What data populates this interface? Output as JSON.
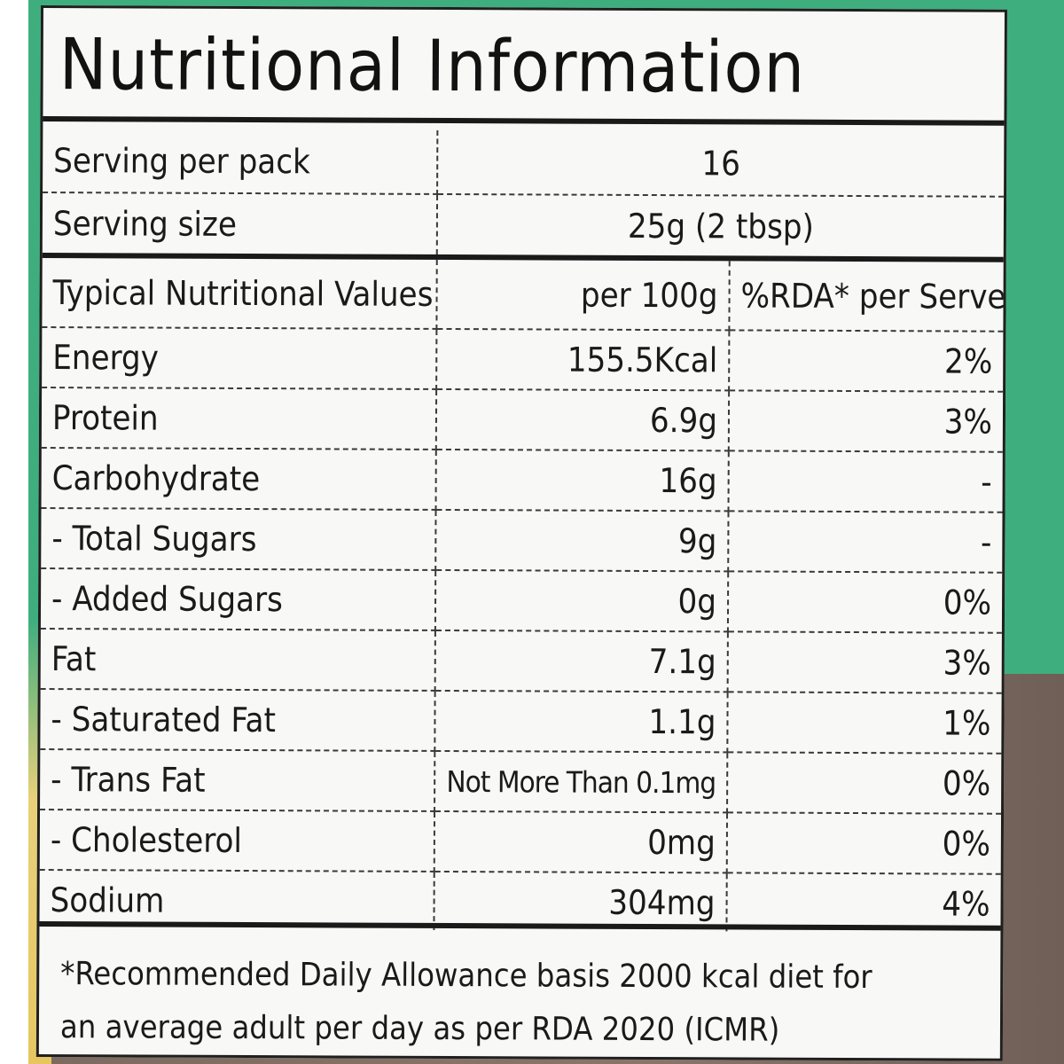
{
  "title": "Nutritional Information",
  "top_text": "",
  "serving": {
    "rows": [
      {
        "label": "Serving per pack",
        "value": "16"
      },
      {
        "label": "Serving size",
        "value": "25g (2 tbsp)"
      }
    ]
  },
  "nutrition": {
    "header": {
      "label": "Typical Nutritional Values",
      "per100": "per 100g",
      "rda": "%RDA* per Serve"
    },
    "rows": [
      {
        "label": "Energy",
        "per100": "155.5Kcal",
        "rda": "2%"
      },
      {
        "label": "Protein",
        "per100": "6.9g",
        "rda": "3%"
      },
      {
        "label": "Carbohydrate",
        "per100": "16g",
        "rda": "-"
      },
      {
        "label": "- Total Sugars",
        "per100": "9g",
        "rda": "-"
      },
      {
        "label": "- Added Sugars",
        "per100": "0g",
        "rda": "0%"
      },
      {
        "label": "Fat",
        "per100": "7.1g",
        "rda": "3%"
      },
      {
        "label": "- Saturated Fat",
        "per100": "1.1g",
        "rda": "1%"
      },
      {
        "label": "- Trans Fat",
        "per100": "Not More Than 0.1mg",
        "rda": "0%"
      },
      {
        "label": "- Cholesterol",
        "per100": "0mg",
        "rda": "0%"
      },
      {
        "label": "Sodium",
        "per100": "304mg",
        "rda": "4%"
      }
    ]
  },
  "footnote": {
    "line1": "*Recommended Daily Allowance basis 2000 kcal diet for",
    "line2": "an average adult per day as per RDA 2020 (ICMR)"
  },
  "colors": {
    "background_top": "#3fae7e",
    "background_bottom": "#7c6a60",
    "label": "#f8f8f6",
    "ink": "#1a1a1a"
  }
}
